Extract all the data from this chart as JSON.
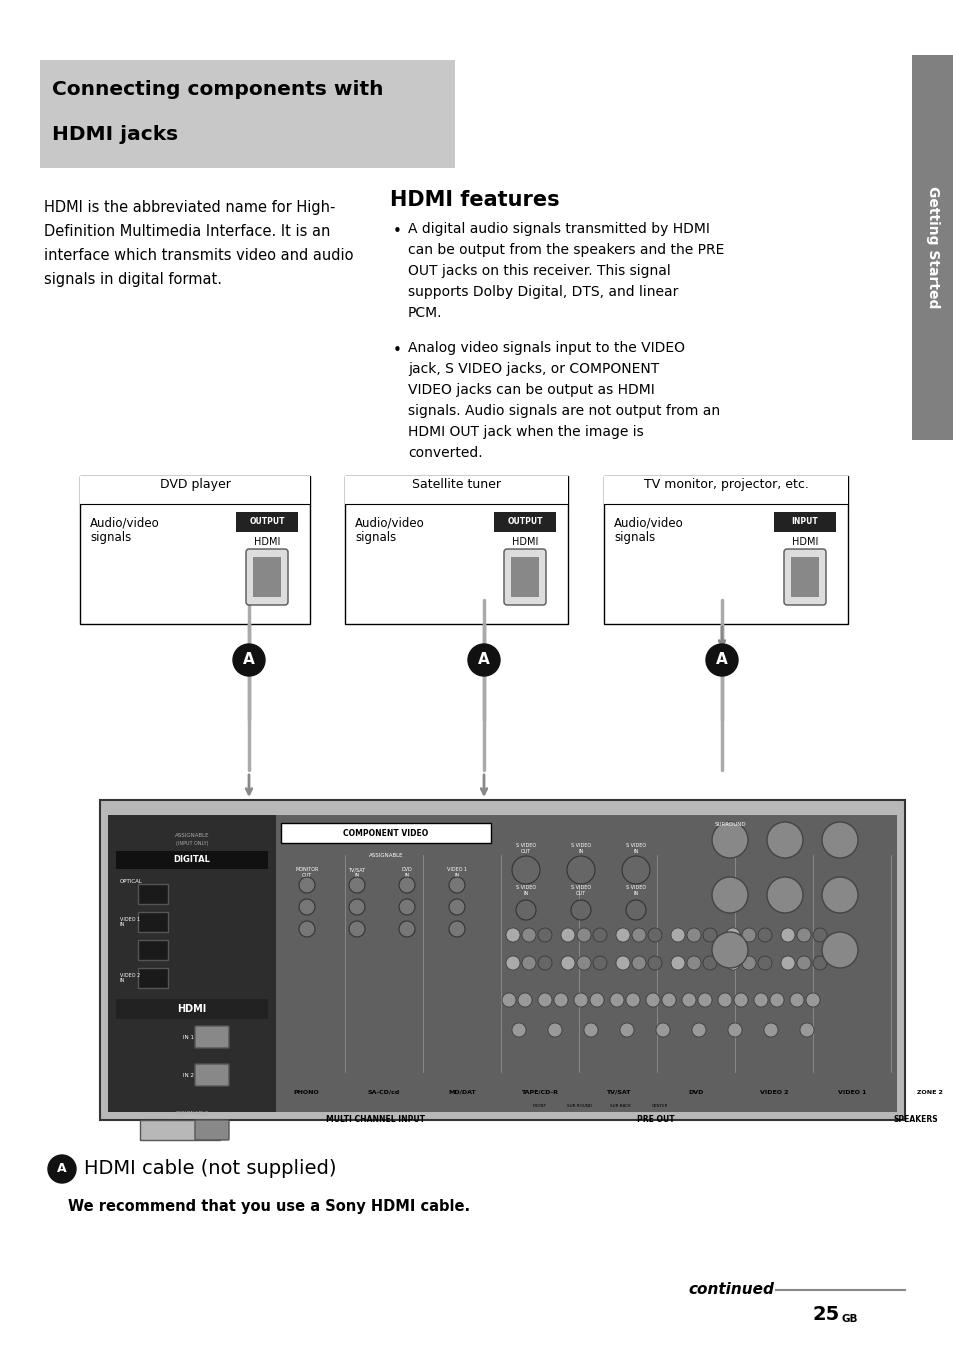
{
  "page_bg": "#ffffff",
  "header_bg": "#c8c8c8",
  "header_title_line1": "Connecting components with",
  "header_title_line2": "HDMI jacks",
  "sidebar_color": "#808080",
  "sidebar_text": "Getting Started",
  "body_lines": [
    "HDMI is the abbreviated name for High-",
    "Definition Multimedia Interface. It is an",
    "interface which transmits video and audio",
    "signals in digital format."
  ],
  "hdmi_features_title": "HDMI features",
  "bullet1_lines": [
    "A digital audio signals transmitted by HDMI",
    "can be output from the speakers and the PRE",
    "OUT jacks on this receiver. This signal",
    "supports Dolby Digital, DTS, and linear",
    "PCM."
  ],
  "bullet2_lines": [
    "Analog video signals input to the VIDEO",
    "jack, S VIDEO jacks, or COMPONENT",
    "VIDEO jacks can be output as HDMI",
    "signals. Audio signals are not output from an",
    "HDMI OUT jack when the image is",
    "converted."
  ],
  "dvd_label": "DVD player",
  "sat_label": "Satellite tuner",
  "tv_label": "TV monitor, projector, etc.",
  "output_label": "OUTPUT\nHDMI",
  "input_label": "INPUT\nHDMI",
  "circle_label": "A",
  "cable_note": "HDMI cable (not supplied)",
  "cable_recommend": "We recommend that you use a Sony HDMI cable.",
  "continued_text": "continued",
  "page_number": "25",
  "page_suffix": "GB",
  "recv_bg": "#b8b8b8",
  "recv_dark": "#3a3a3a",
  "recv_mid": "#888888",
  "label_bg_dark": "#1a1a1a"
}
